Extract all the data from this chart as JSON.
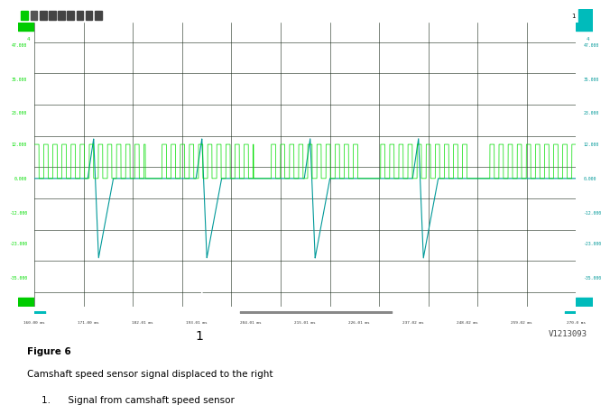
{
  "outer_bg": "#ffffff",
  "screen_bg": "#050505",
  "toolbar_bg": "#111111",
  "sidebar_bg": "#0a0a0a",
  "green_color": "#00dd00",
  "teal_color": "#009999",
  "cyan_color": "#00bbbb",
  "white_color": "#ffffff",
  "title_text": "Figure 6",
  "subtitle_text": "Camshaft speed sensor signal displaced to the right",
  "item1_num": "1.",
  "item1_text": "Signal from camshaft speed sensor",
  "version_text": "V1213093",
  "left_labels": [
    "47.000",
    "35.000",
    "23.000",
    "12.000",
    "0.000",
    "-12.000",
    "-23.000",
    "-35.000"
  ],
  "right_labels": [
    "47.000",
    "35.000",
    "23.000",
    "12.000",
    "0.000",
    "-12.000",
    "-23.000",
    "-35.000"
  ],
  "time_labels": [
    "160.00 ms",
    "171.00 ms",
    "182.01 ms",
    "193.01 ms",
    "204.01 ms",
    "215.01 ms",
    "226.01 ms",
    "237.02 ms",
    "248.02 ms",
    "259.02 ms",
    "270.0 ms"
  ],
  "toolbar_icons": [
    "#00cc00",
    "#444444",
    "#444444",
    "#444444",
    "#444444",
    "#444444",
    "#444444",
    "#444444"
  ],
  "green_marker_top": "4",
  "teal_marker_top": "4"
}
